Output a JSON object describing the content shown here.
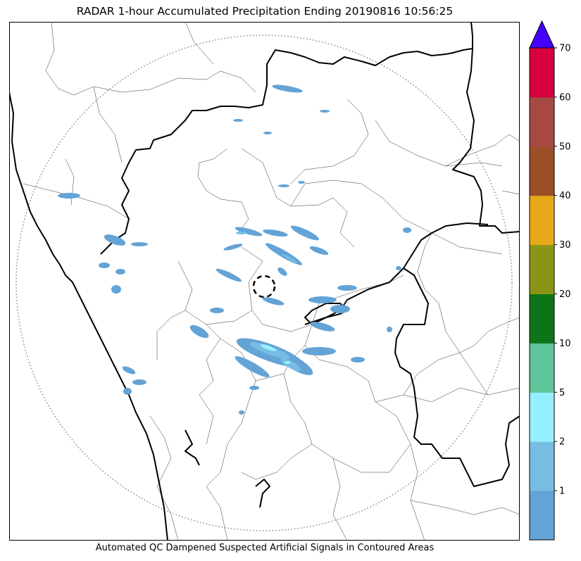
{
  "title": "RADAR 1-hour Accumulated Precipitation Ending 20190816 10:56:25",
  "caption": "Automated QC Dampened Suspected Artificial Signals in Contoured Areas",
  "colorbar": {
    "levels": [
      "1",
      "2",
      "5",
      "10",
      "20",
      "30",
      "40",
      "50",
      "60",
      "70"
    ],
    "colors": [
      "#63a3d6",
      "#77bde3",
      "#96effe",
      "#5ec499",
      "#0c7518",
      "#8a9516",
      "#e7a91a",
      "#9a4f28",
      "#a64943",
      "#d6003f"
    ],
    "extend_color": "#4400ff"
  },
  "map": {
    "range_ring": "dotted",
    "radar_site": "dashed-circle",
    "background": "#ffffff"
  }
}
